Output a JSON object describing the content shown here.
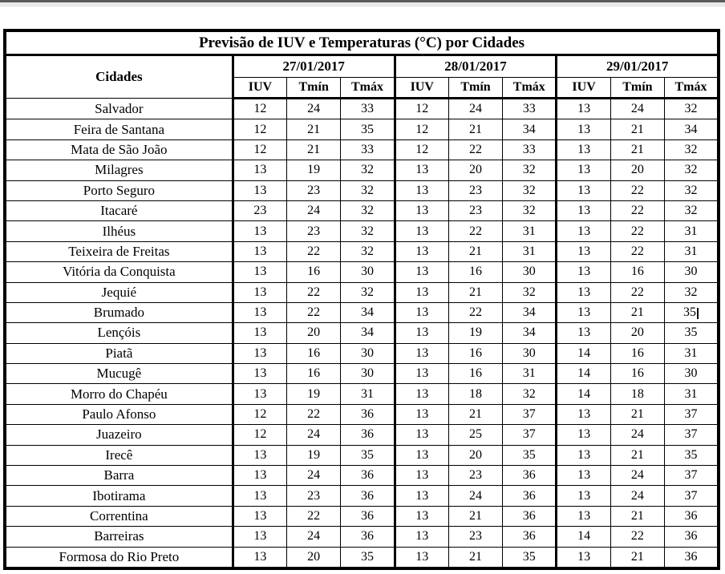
{
  "title": "Previsão de IUV e Temperaturas (°C) por Cidades",
  "colors": {
    "table_border": "#000000",
    "background": "#ffffff",
    "page_edge_strip": "#e9e9e9",
    "text": "#000000"
  },
  "table": {
    "city_column_header": "Cidades",
    "date_headers": [
      "27/01/2017",
      "28/01/2017",
      "29/01/2017"
    ],
    "metric_headers": [
      "IUV",
      "Tmín",
      "Tmáx"
    ],
    "caret": {
      "row_index": 10,
      "value_index": 8
    },
    "rows": [
      {
        "city": "Salvador",
        "values": [
          12,
          24,
          33,
          12,
          24,
          33,
          13,
          24,
          32
        ]
      },
      {
        "city": "Feira de Santana",
        "values": [
          12,
          21,
          35,
          12,
          21,
          34,
          13,
          21,
          34
        ]
      },
      {
        "city": "Mata de São João",
        "values": [
          12,
          21,
          33,
          12,
          22,
          33,
          13,
          21,
          32
        ]
      },
      {
        "city": "Milagres",
        "values": [
          13,
          19,
          32,
          13,
          20,
          32,
          13,
          20,
          32
        ]
      },
      {
        "city": "Porto Seguro",
        "values": [
          13,
          23,
          32,
          13,
          23,
          32,
          13,
          22,
          32
        ]
      },
      {
        "city": "Itacaré",
        "values": [
          23,
          24,
          32,
          13,
          23,
          32,
          13,
          22,
          32
        ]
      },
      {
        "city": "Ilhéus",
        "values": [
          13,
          23,
          32,
          13,
          22,
          31,
          13,
          22,
          31
        ]
      },
      {
        "city": "Teixeira de Freitas",
        "values": [
          13,
          22,
          32,
          13,
          21,
          31,
          13,
          22,
          31
        ]
      },
      {
        "city": "Vitória da Conquista",
        "values": [
          13,
          16,
          30,
          13,
          16,
          30,
          13,
          16,
          30
        ]
      },
      {
        "city": "Jequié",
        "values": [
          13,
          22,
          32,
          13,
          21,
          32,
          13,
          22,
          32
        ]
      },
      {
        "city": "Brumado",
        "values": [
          13,
          22,
          34,
          13,
          22,
          34,
          13,
          21,
          35
        ]
      },
      {
        "city": "Lençóis",
        "values": [
          13,
          20,
          34,
          13,
          19,
          34,
          13,
          20,
          35
        ]
      },
      {
        "city": "Piatã",
        "values": [
          13,
          16,
          30,
          13,
          16,
          30,
          14,
          16,
          31
        ]
      },
      {
        "city": "Mucugê",
        "values": [
          13,
          16,
          30,
          13,
          16,
          31,
          14,
          16,
          30
        ]
      },
      {
        "city": "Morro do Chapéu",
        "values": [
          13,
          19,
          31,
          13,
          18,
          32,
          14,
          18,
          31
        ]
      },
      {
        "city": "Paulo Afonso",
        "values": [
          12,
          22,
          36,
          13,
          21,
          37,
          13,
          21,
          37
        ]
      },
      {
        "city": "Juazeiro",
        "values": [
          12,
          24,
          36,
          13,
          25,
          37,
          13,
          24,
          37
        ]
      },
      {
        "city": "Irecê",
        "values": [
          13,
          19,
          35,
          13,
          20,
          35,
          13,
          21,
          35
        ]
      },
      {
        "city": "Barra",
        "values": [
          13,
          24,
          36,
          13,
          23,
          36,
          13,
          24,
          37
        ]
      },
      {
        "city": "Ibotirama",
        "values": [
          13,
          23,
          36,
          13,
          24,
          36,
          13,
          24,
          37
        ]
      },
      {
        "city": "Correntina",
        "values": [
          13,
          22,
          36,
          13,
          21,
          36,
          13,
          21,
          36
        ]
      },
      {
        "city": "Barreiras",
        "values": [
          13,
          24,
          36,
          13,
          23,
          36,
          14,
          22,
          36
        ]
      },
      {
        "city": "Formosa do Rio Preto",
        "values": [
          13,
          20,
          35,
          13,
          21,
          35,
          13,
          21,
          36
        ]
      }
    ]
  }
}
